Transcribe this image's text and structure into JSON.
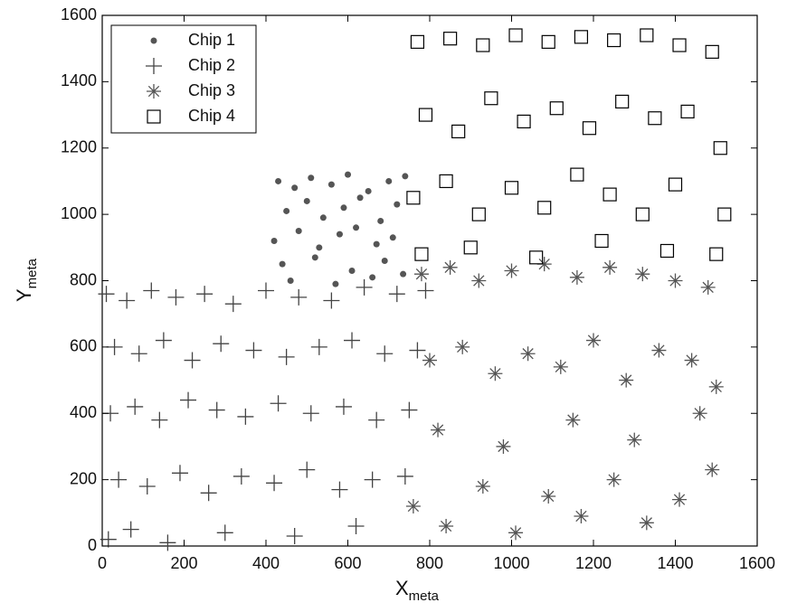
{
  "chart_data": {
    "type": "scatter",
    "xlabel": "X",
    "xlabel_sub": "meta",
    "ylabel": "Y",
    "ylabel_sub": "meta",
    "xlim": [
      0,
      1600
    ],
    "xticks": [
      0,
      200,
      400,
      600,
      800,
      1000,
      1200,
      1400,
      1600
    ],
    "ylim": [
      0,
      1600
    ],
    "yticks": [
      0,
      200,
      400,
      600,
      800,
      1000,
      1200,
      1400,
      1600
    ],
    "grid": false,
    "legend": "upper-left",
    "series": [
      {
        "name": "Chip 1",
        "color": "#555555",
        "marker": "dot",
        "x": [
          430,
          470,
          510,
          560,
          600,
          650,
          700,
          740,
          450,
          500,
          540,
          590,
          630,
          680,
          720,
          420,
          480,
          530,
          580,
          620,
          670,
          710,
          440,
          520,
          610,
          690,
          460,
          570,
          660,
          735
        ],
        "values": [
          1100,
          1080,
          1110,
          1090,
          1120,
          1070,
          1100,
          1115,
          1010,
          1040,
          990,
          1020,
          1050,
          980,
          1030,
          920,
          950,
          900,
          940,
          960,
          910,
          930,
          850,
          870,
          830,
          860,
          800,
          790,
          810,
          820
        ]
      },
      {
        "name": "Chip 2",
        "color": "#444444",
        "marker": "plus",
        "x": [
          10,
          60,
          120,
          180,
          250,
          320,
          400,
          480,
          560,
          640,
          720,
          790,
          30,
          90,
          150,
          220,
          290,
          370,
          450,
          530,
          610,
          690,
          770,
          20,
          80,
          140,
          210,
          280,
          350,
          430,
          510,
          590,
          670,
          750,
          40,
          110,
          190,
          260,
          340,
          420,
          500,
          580,
          660,
          740,
          15,
          70,
          160,
          300,
          470,
          620
        ],
        "values": [
          760,
          740,
          770,
          750,
          760,
          730,
          770,
          750,
          740,
          780,
          760,
          770,
          600,
          580,
          620,
          560,
          610,
          590,
          570,
          600,
          620,
          580,
          590,
          400,
          420,
          380,
          440,
          410,
          390,
          430,
          400,
          420,
          380,
          410,
          200,
          180,
          220,
          160,
          210,
          190,
          230,
          170,
          200,
          210,
          20,
          50,
          10,
          40,
          30,
          60
        ]
      },
      {
        "name": "Chip 3",
        "color": "#555555",
        "marker": "asterisk",
        "x": [
          780,
          850,
          920,
          1000,
          1080,
          1160,
          1240,
          1320,
          1400,
          1480,
          800,
          880,
          960,
          1040,
          1120,
          1200,
          1280,
          1360,
          1440,
          1500,
          760,
          840,
          930,
          1010,
          1090,
          1170,
          1250,
          1330,
          1410,
          1490,
          820,
          980,
          1150,
          1300,
          1460
        ],
        "values": [
          820,
          840,
          800,
          830,
          850,
          810,
          840,
          820,
          800,
          780,
          560,
          600,
          520,
          580,
          540,
          620,
          500,
          590,
          560,
          480,
          120,
          60,
          180,
          40,
          150,
          90,
          200,
          70,
          140,
          230,
          350,
          300,
          380,
          320,
          400
        ]
      },
      {
        "name": "Chip 4",
        "color": "#000000",
        "marker": "square",
        "x": [
          770,
          850,
          930,
          1010,
          1090,
          1170,
          1250,
          1330,
          1410,
          1490,
          790,
          870,
          950,
          1030,
          1110,
          1190,
          1270,
          1350,
          1430,
          1510,
          760,
          840,
          920,
          1000,
          1080,
          1160,
          1240,
          1320,
          1400,
          1520,
          780,
          900,
          1060,
          1220,
          1380,
          1500
        ],
        "values": [
          1520,
          1530,
          1510,
          1540,
          1520,
          1535,
          1525,
          1540,
          1510,
          1490,
          1300,
          1250,
          1350,
          1280,
          1320,
          1260,
          1340,
          1290,
          1310,
          1200,
          1050,
          1100,
          1000,
          1080,
          1020,
          1120,
          1060,
          1000,
          1090,
          1000,
          880,
          900,
          870,
          920,
          890,
          880
        ]
      }
    ]
  }
}
